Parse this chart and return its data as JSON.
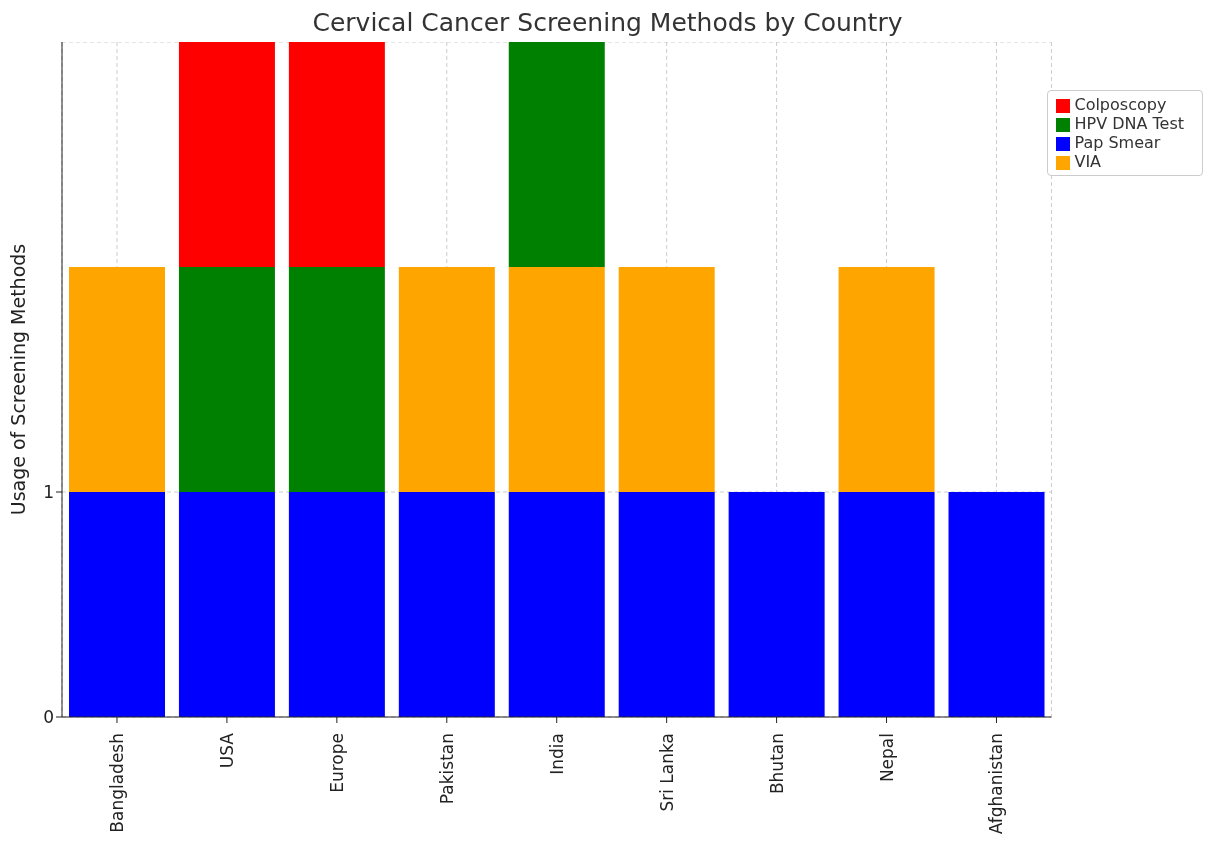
{
  "chart_data": {
    "type": "bar",
    "title": "Cervical Cancer Screening Methods by Country",
    "ylabel": "Usage of Screening Methods",
    "categories": [
      "Bangladesh",
      "USA",
      "Europe",
      "Pakistan",
      "India",
      "Sri Lanka",
      "Bhutan",
      "Nepal",
      "Afghanistan"
    ],
    "series": [
      {
        "name": "Pap Smear",
        "color": "#0000ff",
        "values": [
          1,
          1,
          1,
          1,
          1,
          1,
          1,
          1,
          1
        ]
      },
      {
        "name": "VIA",
        "color": "#ffa500",
        "values": [
          1,
          0,
          0,
          1,
          1,
          1,
          0,
          1,
          0
        ]
      },
      {
        "name": "HPV DNA Test",
        "color": "#008000",
        "values": [
          0,
          1,
          1,
          0,
          1,
          0,
          0,
          0,
          0
        ]
      },
      {
        "name": "Colposcopy",
        "color": "#ff0000",
        "values": [
          0,
          1,
          1,
          0,
          0,
          0,
          0,
          0,
          0
        ]
      }
    ],
    "stacked": true,
    "ylim": [
      0,
      3
    ],
    "yticks": [
      0,
      1
    ],
    "grid": true,
    "legend": "top right"
  }
}
